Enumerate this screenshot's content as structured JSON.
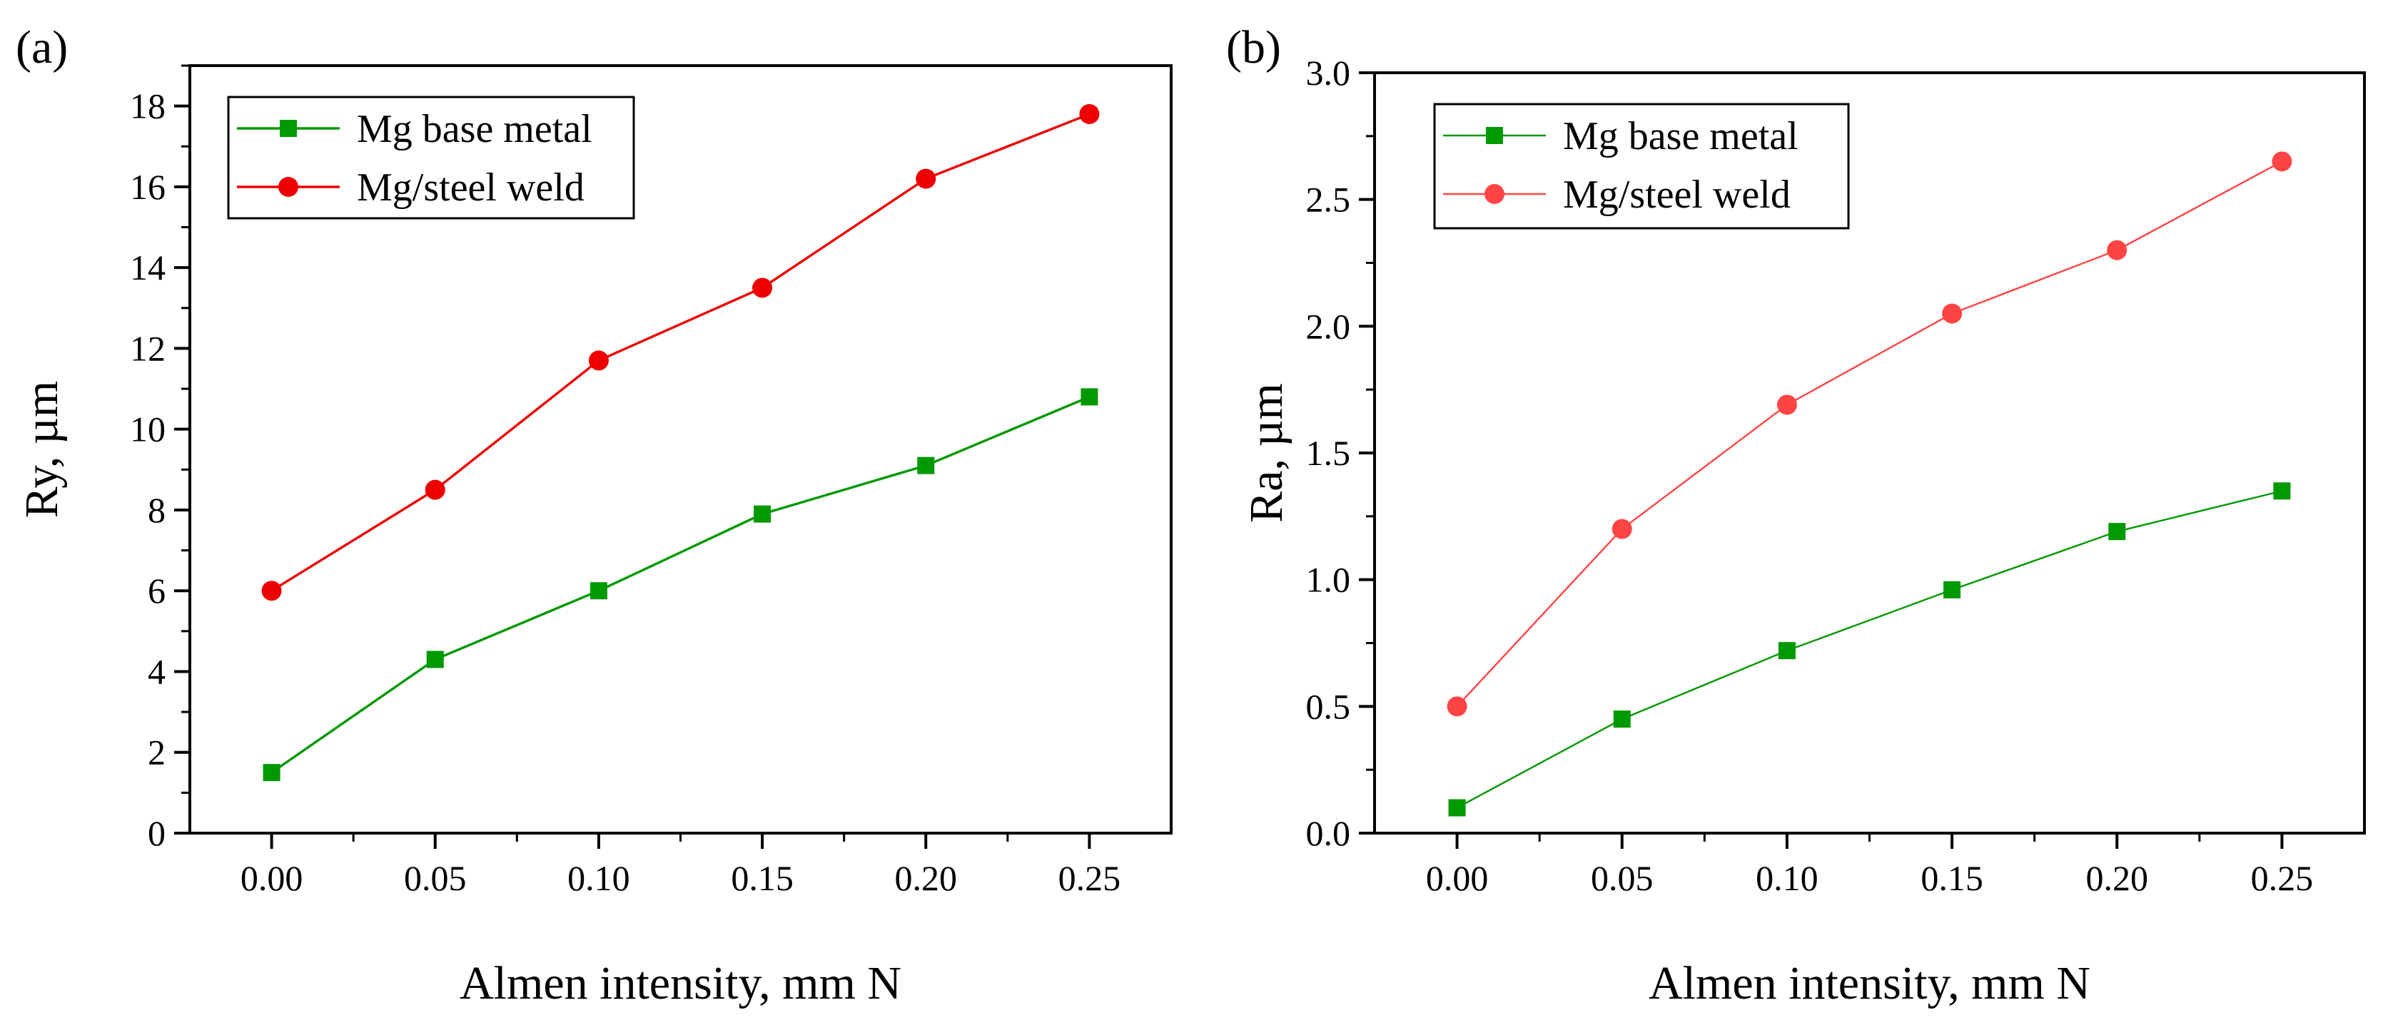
{
  "colors": {
    "base_metal_a": "#009900",
    "weld_a": "#ee0000",
    "base_metal_b": "#009900",
    "weld_b": "#ff4444",
    "axis": "#000000",
    "background": "#ffffff"
  },
  "chart_data": [
    {
      "type": "line",
      "panel_label": "(a)",
      "title": "",
      "xlabel": "Almen intensity, mm N",
      "ylabel": "Ry, µm",
      "xlim": [
        -0.025,
        0.275
      ],
      "ylim": [
        0,
        19
      ],
      "x": [
        0.0,
        0.05,
        0.1,
        0.15,
        0.2,
        0.25
      ],
      "x_tick_values": [
        0.0,
        0.05,
        0.1,
        0.15,
        0.2,
        0.25
      ],
      "x_tick_labels": [
        "0.00",
        "0.05",
        "0.10",
        "0.15",
        "0.20",
        "0.25"
      ],
      "y_tick_values": [
        0,
        2,
        4,
        6,
        8,
        10,
        12,
        14,
        16,
        18
      ],
      "y_tick_labels": [
        "0",
        "2",
        "4",
        "6",
        "8",
        "10",
        "12",
        "14",
        "16",
        "18"
      ],
      "y_minor_step": 1,
      "grid": false,
      "legend_position": "top-left",
      "series": [
        {
          "name": "Mg base metal",
          "marker": "square",
          "color_key": "base_metal_a",
          "values": [
            1.5,
            4.3,
            6.0,
            7.9,
            9.1,
            10.8
          ]
        },
        {
          "name": "Mg/steel weld",
          "marker": "circle",
          "color_key": "weld_a",
          "values": [
            6.0,
            8.5,
            11.7,
            13.5,
            16.2,
            17.8
          ]
        }
      ]
    },
    {
      "type": "line",
      "panel_label": "(b)",
      "title": "",
      "xlabel": "Almen intensity, mm N",
      "ylabel": "Ra, µm",
      "xlim": [
        -0.025,
        0.275
      ],
      "ylim": [
        0,
        3.0
      ],
      "x": [
        0.0,
        0.05,
        0.1,
        0.15,
        0.2,
        0.25
      ],
      "x_tick_values": [
        0.0,
        0.05,
        0.1,
        0.15,
        0.2,
        0.25
      ],
      "x_tick_labels": [
        "0.00",
        "0.05",
        "0.10",
        "0.15",
        "0.20",
        "0.25"
      ],
      "y_tick_values": [
        0,
        0.5,
        1.0,
        1.5,
        2.0,
        2.5,
        3.0
      ],
      "y_tick_labels": [
        "0.0",
        "0.5",
        "1.0",
        "1.5",
        "2.0",
        "2.5",
        "3.0"
      ],
      "y_minor_step": 0.25,
      "grid": false,
      "legend_position": "top-left",
      "series": [
        {
          "name": "Mg base metal",
          "marker": "square",
          "color_key": "base_metal_b",
          "values": [
            0.1,
            0.45,
            0.72,
            0.96,
            1.19,
            1.35
          ]
        },
        {
          "name": "Mg/steel weld",
          "marker": "circle",
          "color_key": "weld_b",
          "values": [
            0.5,
            1.2,
            1.69,
            2.05,
            2.3,
            2.65
          ]
        }
      ]
    }
  ]
}
